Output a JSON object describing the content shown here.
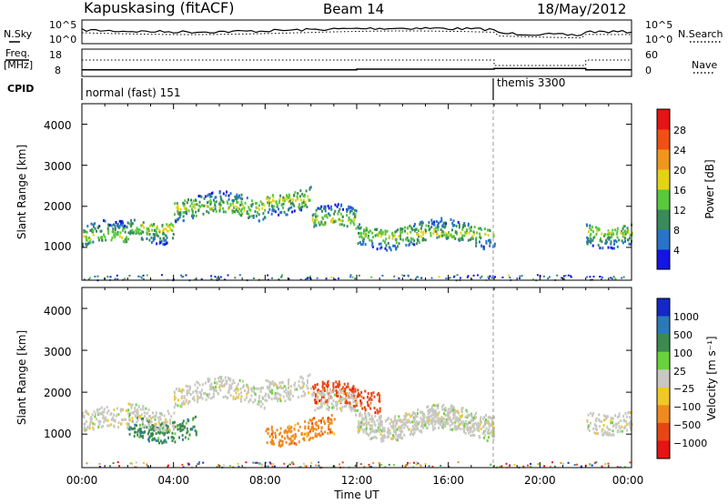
{
  "header": {
    "station": "Kapuskasing (fitACF)",
    "beam": "Beam 14",
    "date": "18/May/2012"
  },
  "noise_panel": {
    "left_label": "N.Sky",
    "right_label": "N.Search",
    "tick_top": "10^5",
    "tick_bottom": "10^0"
  },
  "freq_panel": {
    "left_label_1": "Freq.",
    "left_label_2": "[MHz]",
    "left_ticks": [
      "18",
      "8"
    ],
    "right_ticks": [
      "60",
      "0"
    ],
    "right_label": "Nave"
  },
  "cpid_panel": {
    "label": "CPID",
    "mode_1": "normal (fast) 151",
    "mode_2": "themis 3300"
  },
  "power_panel": {
    "ylabel": "Slant Range [km]",
    "yticks": [
      "4000",
      "3000",
      "2000",
      "1000"
    ],
    "colorbar_label": "Power [dB]",
    "colorbar_ticks": [
      "28",
      "24",
      "20",
      "16",
      "12",
      "8",
      "4"
    ],
    "colors": [
      "#1414e6",
      "#2874c8",
      "#3a8a5a",
      "#58c83c",
      "#e6d214",
      "#f0961e",
      "#f05014",
      "#e61414"
    ]
  },
  "velocity_panel": {
    "ylabel": "Slant Range [km]",
    "yticks": [
      "4000",
      "3000",
      "2000",
      "1000"
    ],
    "colorbar_label": "Velocity [m s⁻¹]",
    "colorbar_ticks": [
      "1000",
      "500",
      "100",
      "25",
      "−25",
      "−100",
      "−500",
      "−1000"
    ],
    "colors": [
      "#1428c8",
      "#2a7ab8",
      "#3c8a50",
      "#6ad23c",
      "#c8c8c0",
      "#f0c828",
      "#f08a1e",
      "#e64614",
      "#e61414"
    ]
  },
  "xaxis": {
    "label": "Time UT",
    "ticks": [
      "00:00",
      "04:00",
      "08:00",
      "12:00",
      "16:00",
      "20:00",
      "00:00"
    ]
  },
  "chart_data": {
    "type": "heatmap",
    "x_range_hours": [
      0,
      24
    ],
    "y_range_km": [
      200,
      4500
    ],
    "mode_change_hour": 18.0,
    "frequency_MHz": [
      {
        "from_hour": 0,
        "to_hour": 12,
        "value": 10
      },
      {
        "from_hour": 12,
        "to_hour": 18,
        "value": 10.5
      },
      {
        "from_hour": 18,
        "to_hour": 22,
        "value": 11
      },
      {
        "from_hour": 22,
        "to_hour": 24,
        "value": 10
      }
    ],
    "power_echo_bands": [
      {
        "from_hour": 0.0,
        "to_hour": 2.0,
        "range_km": 1300
      },
      {
        "from_hour": 2.0,
        "to_hour": 4.0,
        "range_km": 1500
      },
      {
        "from_hour": 4.0,
        "to_hour": 8.0,
        "range_km": 2000
      },
      {
        "from_hour": 8.0,
        "to_hour": 10.0,
        "range_km": 2200
      },
      {
        "from_hour": 10.0,
        "to_hour": 12.0,
        "range_km": 1700
      },
      {
        "from_hour": 12.0,
        "to_hour": 18.0,
        "range_km": 1350
      },
      {
        "from_hour": 22.0,
        "to_hour": 24.0,
        "range_km": 1400
      }
    ],
    "velocity_features": [
      {
        "from_hour": 10.0,
        "to_hour": 13.0,
        "range_km": 1900,
        "velocity_ms": -300
      },
      {
        "from_hour": 12.0,
        "to_hour": 18.0,
        "range_km": 1250,
        "velocity_ms": 0
      },
      {
        "from_hour": 8.0,
        "to_hour": 11.0,
        "range_km": 1100,
        "velocity_ms": -150
      },
      {
        "from_hour": 2.0,
        "to_hour": 5.0,
        "range_km": 1200,
        "velocity_ms": 100
      }
    ]
  }
}
